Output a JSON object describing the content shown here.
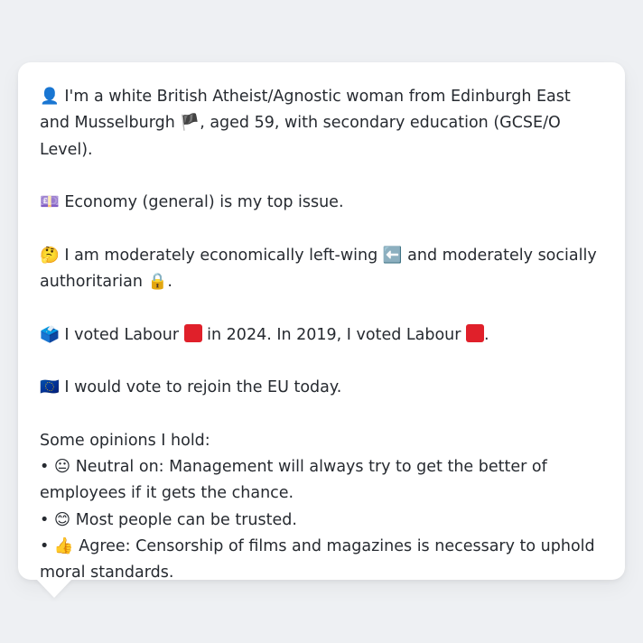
{
  "colors": {
    "background": "#eef0f3",
    "card": "#ffffff",
    "text": "#262a30",
    "labour_red": "#e0202a"
  },
  "profile": {
    "intro_icon": "👤",
    "intro_a": " I'm a white British Atheist/Agnostic woman from Edinburgh East and Musselburgh ",
    "flag_icon": "🏴",
    "intro_b": ", aged 59, with secondary education (GCSE/O Level).",
    "issue_icon": "💷",
    "issue_text": " Economy (general) is my top issue.",
    "think_icon": "🤔",
    "politics_a": " I am moderately economically left-wing ",
    "left_icon": "⬅️",
    "politics_b": " and moderately socially authoritarian ",
    "lock_icon": "🔒",
    "politics_c": ".",
    "ballot_icon": "🗳️",
    "vote_a": " I voted Labour ",
    "vote_b": " in 2024. In 2019, I voted Labour ",
    "vote_c": ".",
    "eu_icon": "🇪🇺",
    "eu_text": " I would vote to rejoin the EU today.",
    "opinions_header": "Some opinions I hold:",
    "opinions": [
      {
        "bullet": "• ",
        "icon": "😐",
        "text": " Neutral on: Management will always try to get the better of employees if it gets the chance."
      },
      {
        "bullet": "• ",
        "icon": "😊",
        "text": " Most people can be trusted."
      },
      {
        "bullet": "• ",
        "icon": "👍",
        "text": " Agree: Censorship of films and magazines is necessary to uphold moral standards."
      }
    ]
  }
}
